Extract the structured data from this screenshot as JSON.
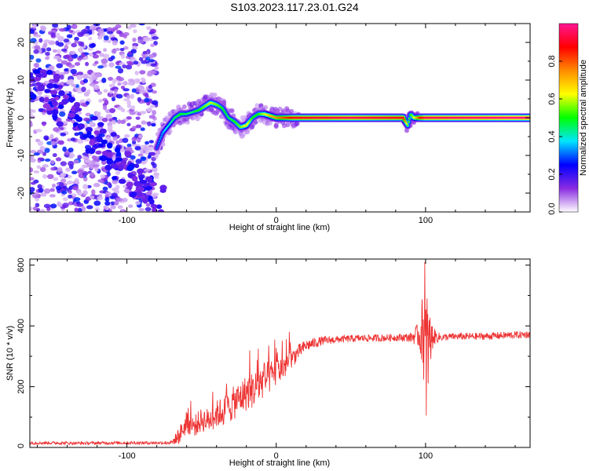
{
  "title": "S103.2023.117.23.01.G24",
  "chart_data": [
    {
      "type": "heatmap",
      "title": "S103.2023.117.23.01.G24",
      "xlabel": "Height of straight line (km)",
      "ylabel": "Frequency (Hz)",
      "xlim": [
        -165,
        170
      ],
      "ylim": [
        -25,
        25
      ],
      "xticks": [
        -100,
        0,
        100
      ],
      "yticks": [
        -20,
        -10,
        0,
        10,
        20
      ],
      "colorbar": {
        "label": "Normalized spectral amplitude",
        "range": [
          0,
          1
        ],
        "ticks": [
          0.0,
          0.2,
          0.4,
          0.6,
          0.8
        ],
        "colors": [
          "#ffffff",
          "#8a2be2",
          "#0000ff",
          "#00e5ff",
          "#00ff00",
          "#ffff00",
          "#ff8c00",
          "#ff0000",
          "#ff1493"
        ]
      },
      "ridge": {
        "x": [
          -80,
          -76,
          -72,
          -68,
          -64,
          -60,
          -56,
          -52,
          -48,
          -44,
          -40,
          -36,
          -32,
          -28,
          -24,
          -20,
          -16,
          -12,
          -8,
          -4,
          0,
          4,
          8,
          12,
          50,
          85,
          88,
          90,
          92,
          96,
          100,
          170
        ],
        "freq": [
          -8,
          -4,
          -2,
          0,
          1,
          1,
          1.5,
          2,
          3,
          4,
          3.5,
          2.5,
          0,
          -1,
          -2.5,
          -2,
          0,
          1,
          1,
          0.5,
          0,
          0,
          0,
          0,
          0,
          0,
          -2,
          1,
          0,
          0,
          0,
          0
        ],
        "amplitude": [
          0.3,
          0.35,
          0.4,
          0.45,
          0.5,
          0.45,
          0.45,
          0.5,
          0.55,
          0.6,
          0.55,
          0.5,
          0.45,
          0.5,
          0.55,
          0.65,
          0.5,
          0.5,
          0.6,
          0.7,
          0.75,
          0.8,
          0.85,
          0.9,
          0.95,
          0.9,
          0.55,
          0.5,
          0.6,
          0.85,
          0.95,
          1.0
        ]
      }
    },
    {
      "type": "line",
      "xlabel": "Height of straight line (km)",
      "ylabel": "SNR (10 * v/v)",
      "xlim": [
        -165,
        170
      ],
      "ylim": [
        0,
        620
      ],
      "xticks": [
        -100,
        0,
        100
      ],
      "yticks": [
        0,
        200,
        400,
        600
      ],
      "color": "#ee3333",
      "x": [
        -165,
        -150,
        -130,
        -110,
        -90,
        -80,
        -70,
        -65,
        -60,
        -55,
        -50,
        -45,
        -40,
        -35,
        -30,
        -25,
        -20,
        -15,
        -10,
        -5,
        0,
        5,
        10,
        15,
        20,
        30,
        40,
        50,
        60,
        70,
        80,
        90,
        95,
        98,
        100,
        102,
        105,
        110,
        120,
        130,
        140,
        150,
        160,
        170
      ],
      "y": [
        15,
        15,
        14,
        15,
        15,
        15,
        16,
        40,
        80,
        70,
        90,
        90,
        110,
        120,
        140,
        160,
        180,
        190,
        215,
        230,
        245,
        265,
        290,
        315,
        335,
        350,
        355,
        358,
        360,
        360,
        362,
        362,
        370,
        380,
        360,
        330,
        365,
        362,
        365,
        365,
        366,
        368,
        370,
        372
      ],
      "noise_amplitude": [
        5,
        5,
        5,
        5,
        5,
        5,
        6,
        30,
        35,
        35,
        40,
        40,
        45,
        50,
        55,
        55,
        60,
        60,
        60,
        55,
        50,
        45,
        35,
        25,
        20,
        15,
        12,
        12,
        12,
        12,
        12,
        15,
        40,
        120,
        200,
        150,
        30,
        12,
        12,
        12,
        12,
        12,
        12,
        12
      ],
      "spikes": [
        {
          "x": -12,
          "y": 325
        },
        {
          "x": -1,
          "y": 355
        },
        {
          "x": 99.5,
          "y": 610
        },
        {
          "x": 100.5,
          "y": 105
        },
        {
          "x": 101,
          "y": 490
        }
      ]
    }
  ]
}
